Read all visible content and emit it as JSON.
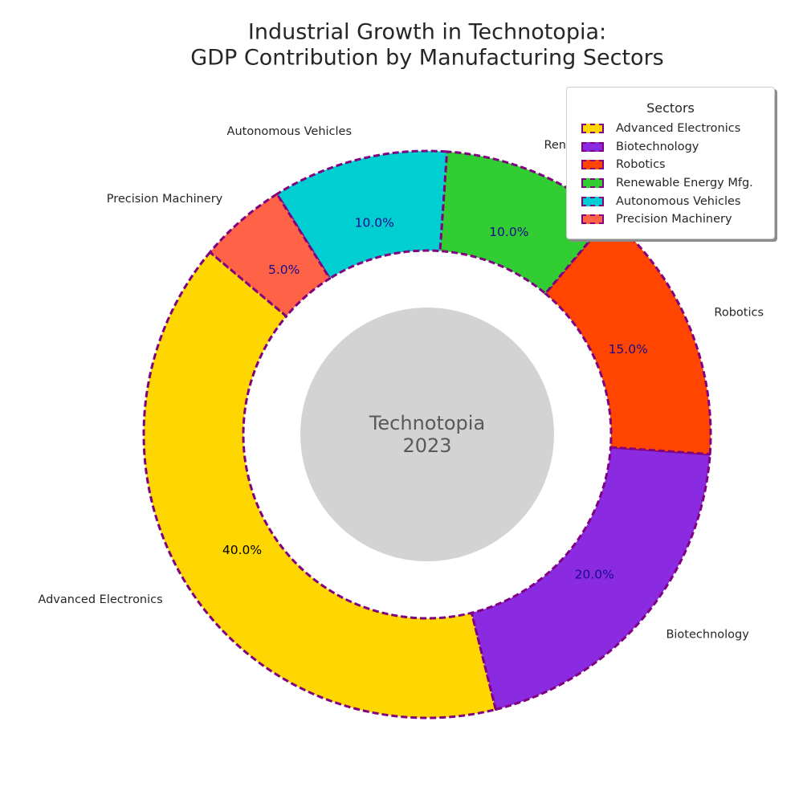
{
  "chart_data": {
    "type": "pie",
    "variant": "donut",
    "title": "Industrial Growth in Technotopia:\nGDP Contribution by Manufacturing Sectors",
    "center_label": "Technotopia\n2023",
    "legend_title": "Sectors",
    "legend_placement": "top-right",
    "edge_color": "#800080",
    "edge_style": "dashed",
    "slices": [
      {
        "label": "Advanced Electronics",
        "legend_label": "Advanced Electronics",
        "value": 40.0,
        "pct_label": "40.0%",
        "color": "#FFD700",
        "pct_color": "#000000"
      },
      {
        "label": "Biotechnology",
        "legend_label": "Biotechnology",
        "value": 20.0,
        "pct_label": "20.0%",
        "color": "#8A2BE2",
        "pct_color": "#1a0a8c"
      },
      {
        "label": "Robotics",
        "legend_label": "Robotics",
        "value": 15.0,
        "pct_label": "15.0%",
        "color": "#FF4500",
        "pct_color": "#1a0a8c"
      },
      {
        "label": "Renewable Energy Mfg.",
        "legend_label": "Renewable Energy Mfg.",
        "value": 10.0,
        "pct_label": "10.0%",
        "color": "#32CD32",
        "pct_color": "#1a0a8c"
      },
      {
        "label": "Autonomous Vehicles",
        "legend_label": "Autonomous Vehicles",
        "value": 10.0,
        "pct_label": "10.0%",
        "color": "#00CED1",
        "pct_color": "#1a0a8c"
      },
      {
        "label": "Precision Machinery",
        "legend_label": "Precision Machinery",
        "value": 5.0,
        "pct_label": "5.0%",
        "color": "#FF6347",
        "pct_color": "#1a0a8c"
      }
    ]
  }
}
